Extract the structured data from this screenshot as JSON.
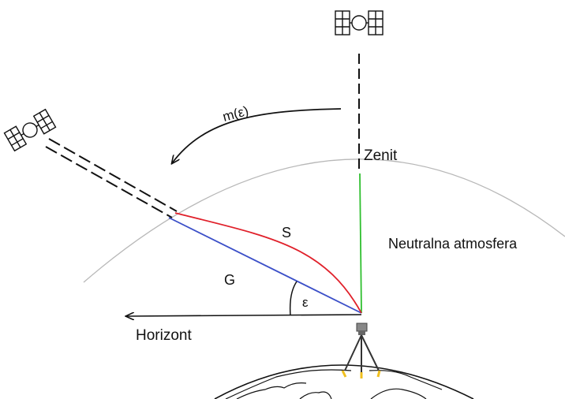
{
  "labels": {
    "mapping_function": "m(ε)",
    "zenith": "Zenit",
    "slant_path": "S",
    "geometric_path": "G",
    "elevation_angle": "ε",
    "horizon": "Horizont",
    "atmosphere": "Neutralna atmosfera"
  },
  "colors": {
    "slant_path": "#e0202a",
    "geometric_path": "#3b4fc8",
    "zenith_line": "#2fbf2f",
    "atmosphere_boundary": "#b8b8b8",
    "ink": "#111111",
    "tripod_feet": "#f0c020",
    "instrument": "#888888"
  },
  "icons": {
    "zenith_satellite": "satellite-icon",
    "slant_satellite": "satellite-icon",
    "receiver": "tripod-receiver-icon",
    "earth": "earth-globe-icon"
  }
}
